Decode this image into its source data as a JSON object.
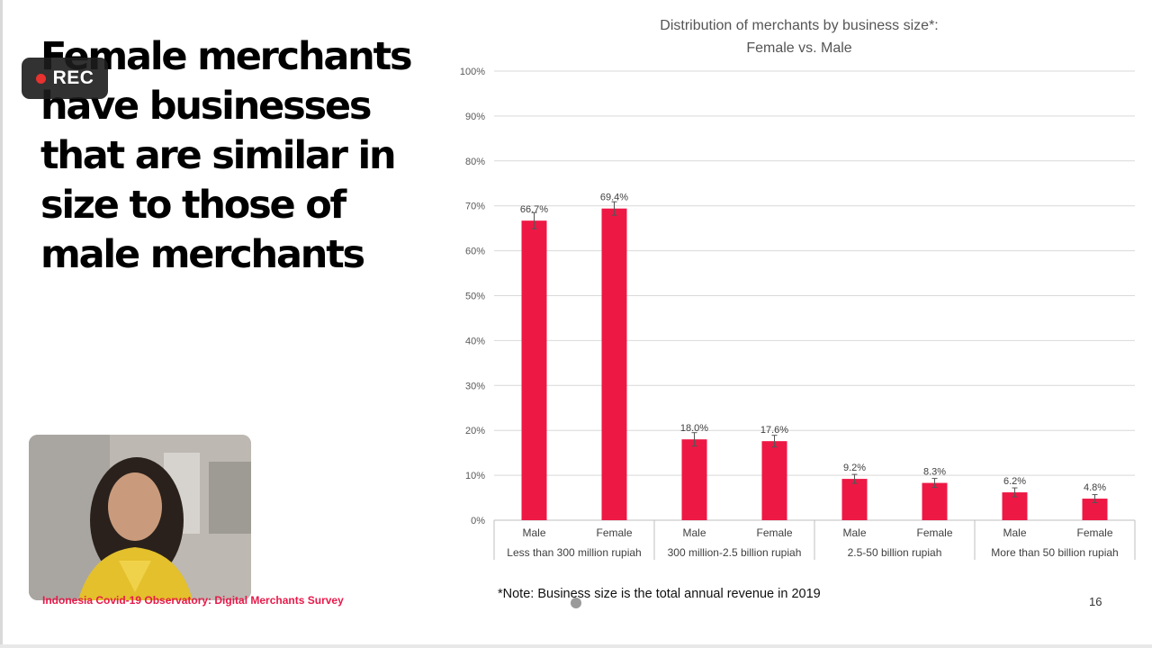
{
  "slide": {
    "headline": "Female merchants have businesses that are similar in size to those of male merchants",
    "footer_source": "Indonesia Covid-19 Observatory: Digital Merchants Survey",
    "footnote": "*Note: Business size is the total annual revenue in 2019",
    "page_number": "16"
  },
  "recording": {
    "label": "REC",
    "dot_color": "#e8322f"
  },
  "colors": {
    "bar": "#ee1845",
    "grid": "#d9d9d9",
    "accent": "#e8194a"
  },
  "chart_data": {
    "type": "bar",
    "title_lines": [
      "Distribution of merchants by business size*:",
      "Female vs. Male"
    ],
    "ylim": [
      0,
      100
    ],
    "y_ticks": [
      "0%",
      "10%",
      "20%",
      "30%",
      "40%",
      "50%",
      "60%",
      "70%",
      "80%",
      "90%",
      "100%"
    ],
    "grid": true,
    "error_bars": true,
    "groups": [
      {
        "name": "Less than 300 million rupiah",
        "bars": [
          {
            "label": "Male",
            "value": 66.7,
            "value_label": "66.7%",
            "err": 1.8
          },
          {
            "label": "Female",
            "value": 69.4,
            "value_label": "69.4%",
            "err": 1.5
          }
        ]
      },
      {
        "name": "300 million-2.5 billion rupiah",
        "bars": [
          {
            "label": "Male",
            "value": 18.0,
            "value_label": "18.0%",
            "err": 1.5
          },
          {
            "label": "Female",
            "value": 17.6,
            "value_label": "17.6%",
            "err": 1.3
          }
        ]
      },
      {
        "name": "2.5-50 billion rupiah",
        "bars": [
          {
            "label": "Male",
            "value": 9.2,
            "value_label": "9.2%",
            "err": 1.0
          },
          {
            "label": "Female",
            "value": 8.3,
            "value_label": "8.3%",
            "err": 1.0
          }
        ]
      },
      {
        "name": "More than 50 billion rupiah",
        "bars": [
          {
            "label": "Male",
            "value": 6.2,
            "value_label": "6.2%",
            "err": 1.0
          },
          {
            "label": "Female",
            "value": 4.8,
            "value_label": "4.8%",
            "err": 0.9
          }
        ]
      }
    ]
  }
}
